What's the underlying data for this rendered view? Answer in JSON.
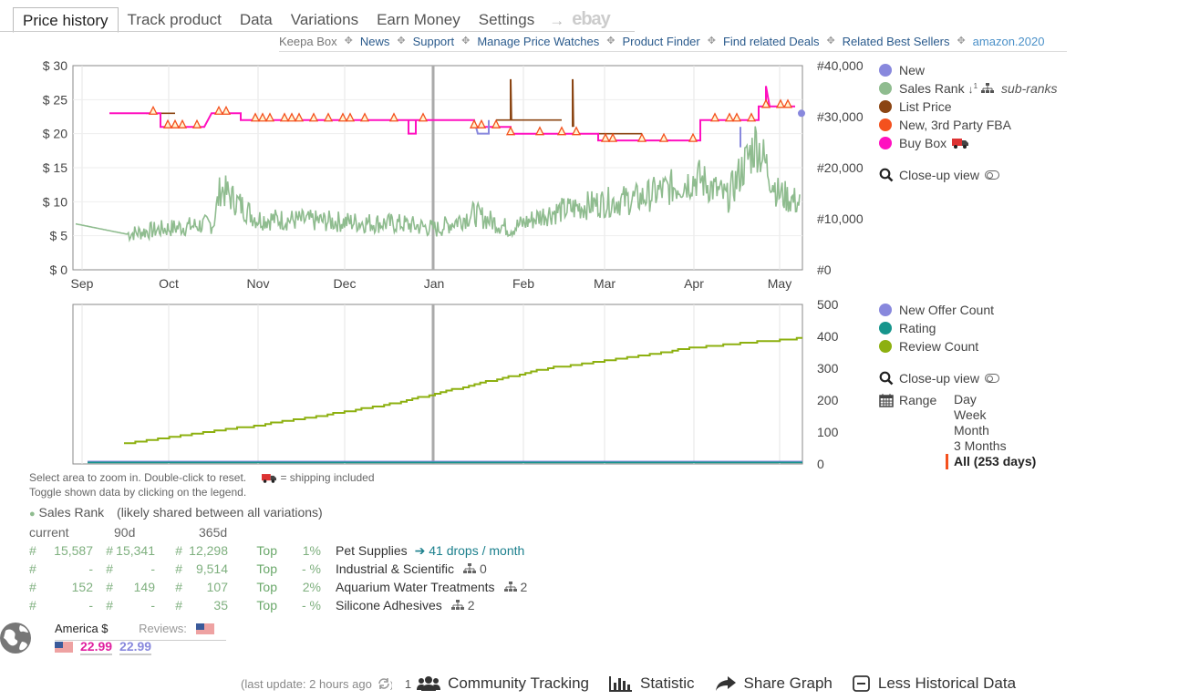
{
  "tabs": [
    {
      "label": "Price history",
      "active": true
    },
    {
      "label": "Track product"
    },
    {
      "label": "Data"
    },
    {
      "label": "Variations"
    },
    {
      "label": "Earn Money"
    },
    {
      "label": "Settings"
    }
  ],
  "tab_arrow": "→",
  "tab_ebay": "ebay",
  "sublinks": {
    "keepa_box": "Keepa Box",
    "news": "News",
    "support": "Support",
    "manage": "Manage Price Watches",
    "finder": "Product Finder",
    "deals": "Find related Deals",
    "best": "Related Best Sellers",
    "amazon": "amazon.2020"
  },
  "chart_data": [
    {
      "type": "line",
      "x_labels": [
        "Sep",
        "Oct",
        "Nov",
        "Dec",
        "Jan",
        "Feb",
        "Mar",
        "Apr",
        "May"
      ],
      "y_left_ticks": [
        "$ 30",
        "$ 25",
        "$ 20",
        "$ 15",
        "$ 10",
        "$ 5",
        "$ 0"
      ],
      "y_left_range": [
        0,
        30
      ],
      "y_right_ticks": [
        "#40,000",
        "#30,000",
        "#20,000",
        "#10,000",
        "#0"
      ],
      "y_right_range": [
        0,
        40000
      ],
      "series": [
        {
          "name": "New",
          "color": "#8888dd"
        },
        {
          "name": "Sales Rank",
          "color": "#8fbc8f"
        },
        {
          "name": "List Price",
          "color": "#8b4513"
        },
        {
          "name": "New, 3rd Party FBA",
          "color": "#f4511e"
        },
        {
          "name": "Buy Box",
          "color": "#e020c0"
        }
      ],
      "buy_box_steps": [
        {
          "x": 0.05,
          "y": 23
        },
        {
          "x": 0.12,
          "y": 23
        },
        {
          "x": 0.12,
          "y": 21
        },
        {
          "x": 0.18,
          "y": 21
        },
        {
          "x": 0.19,
          "y": 23
        },
        {
          "x": 0.23,
          "y": 23
        },
        {
          "x": 0.23,
          "y": 22
        },
        {
          "x": 0.46,
          "y": 22
        },
        {
          "x": 0.46,
          "y": 22
        },
        {
          "x": 0.55,
          "y": 22
        },
        {
          "x": 0.55,
          "y": 21
        },
        {
          "x": 0.6,
          "y": 21
        },
        {
          "x": 0.6,
          "y": 20
        },
        {
          "x": 0.72,
          "y": 20
        },
        {
          "x": 0.72,
          "y": 19
        },
        {
          "x": 0.86,
          "y": 19
        },
        {
          "x": 0.86,
          "y": 22
        },
        {
          "x": 0.94,
          "y": 22
        },
        {
          "x": 0.94,
          "y": 24
        },
        {
          "x": 0.99,
          "y": 24
        }
      ],
      "list_price_steps": [
        {
          "x": 0.1,
          "y": 23
        },
        {
          "x": 0.14,
          "y": 23
        },
        {
          "x": 0.58,
          "y": 22
        },
        {
          "x": 0.67,
          "y": 22
        },
        {
          "x": 0.72,
          "y": 20
        },
        {
          "x": 0.78,
          "y": 20
        },
        {
          "x": 0.79,
          "y": 19
        },
        {
          "x": 0.82,
          "y": 19
        }
      ],
      "sales_rank_trend": [
        {
          "x": 0.0,
          "v": 9000
        },
        {
          "x": 0.07,
          "v": 7000
        },
        {
          "x": 0.12,
          "v": 8000
        },
        {
          "x": 0.19,
          "v": 9000
        },
        {
          "x": 0.2,
          "v": 16000
        },
        {
          "x": 0.25,
          "v": 10000
        },
        {
          "x": 0.35,
          "v": 9500
        },
        {
          "x": 0.45,
          "v": 9000
        },
        {
          "x": 0.5,
          "v": 8000
        },
        {
          "x": 0.55,
          "v": 11000
        },
        {
          "x": 0.6,
          "v": 8000
        },
        {
          "x": 0.65,
          "v": 11000
        },
        {
          "x": 0.72,
          "v": 13000
        },
        {
          "x": 0.78,
          "v": 14000
        },
        {
          "x": 0.86,
          "v": 18000
        },
        {
          "x": 0.9,
          "v": 14000
        },
        {
          "x": 0.94,
          "v": 25000
        },
        {
          "x": 0.97,
          "v": 15000
        },
        {
          "x": 1.0,
          "v": 13000
        }
      ]
    },
    {
      "type": "line",
      "y_right_ticks": [
        "500",
        "400",
        "300",
        "200",
        "100",
        "0"
      ],
      "y_right_range": [
        0,
        500
      ],
      "series": [
        {
          "name": "New Offer Count",
          "color": "#8888dd"
        },
        {
          "name": "Rating",
          "color": "#16958c"
        },
        {
          "name": "Review Count",
          "color": "#8db010"
        }
      ],
      "review_count": [
        {
          "x": 0.07,
          "v": 65
        },
        {
          "x": 0.15,
          "v": 90
        },
        {
          "x": 0.25,
          "v": 120
        },
        {
          "x": 0.35,
          "v": 155
        },
        {
          "x": 0.45,
          "v": 195
        },
        {
          "x": 0.55,
          "v": 250
        },
        {
          "x": 0.65,
          "v": 300
        },
        {
          "x": 0.75,
          "v": 330
        },
        {
          "x": 0.85,
          "v": 365
        },
        {
          "x": 0.95,
          "v": 385
        },
        {
          "x": 1.0,
          "v": 395
        }
      ]
    }
  ],
  "legend_top": {
    "new": "New",
    "sales_rank": "Sales Rank",
    "sub_ranks": "sub-ranks",
    "list_price": "List Price",
    "fba": "New, 3rd Party FBA",
    "buy_box": "Buy Box",
    "closeup": "Close-up view"
  },
  "legend_bottom": {
    "offer": "New Offer Count",
    "rating": "Rating",
    "review": "Review Count",
    "closeup": "Close-up view",
    "range": "Range"
  },
  "range_options": [
    "Day",
    "Week",
    "Month",
    "3 Months"
  ],
  "range_selected": "All (253 days)",
  "notes": {
    "line1": "Select area to zoom in. Double-click to reset.",
    "shipping": "= shipping included",
    "line2": "Toggle shown data by clicking on the legend."
  },
  "sales_rank": {
    "title": "Sales Rank",
    "subtitle": "(likely shared between all variations)",
    "headers": [
      "current",
      "90d",
      "365d"
    ],
    "rows": [
      {
        "hash": "#",
        "cur": "15,587",
        "d90": "15,341",
        "d365": "12,298",
        "top": "Top",
        "pct": "1%",
        "cat": "Pet Supplies",
        "drops": "41 drops / month",
        "sub": ""
      },
      {
        "hash": "#",
        "cur": "-",
        "d90": "-",
        "d365": "9,514",
        "top": "Top",
        "pct": "- %",
        "cat": "Industrial & Scientific",
        "drops": "",
        "sub": "0"
      },
      {
        "hash": "#",
        "cur": "152",
        "d90": "149",
        "d365": "107",
        "top": "Top",
        "pct": "2%",
        "cat": "Aquarium Water Treatments",
        "drops": "",
        "sub": "2"
      },
      {
        "hash": "#",
        "cur": "-",
        "d90": "-",
        "d365": "35",
        "top": "Top",
        "pct": "- %",
        "cat": "Silicone Adhesives",
        "drops": "",
        "sub": "2"
      }
    ]
  },
  "locale": {
    "country": "America $",
    "reviews": "Reviews:",
    "price_buybox": "22.99",
    "price_new": "22.99"
  },
  "footer": {
    "last_update": "(last update: 2 hours ago",
    "count": "1",
    "community": "Community Tracking",
    "statistic": "Statistic",
    "share": "Share Graph",
    "less": "Less Historical Data"
  }
}
